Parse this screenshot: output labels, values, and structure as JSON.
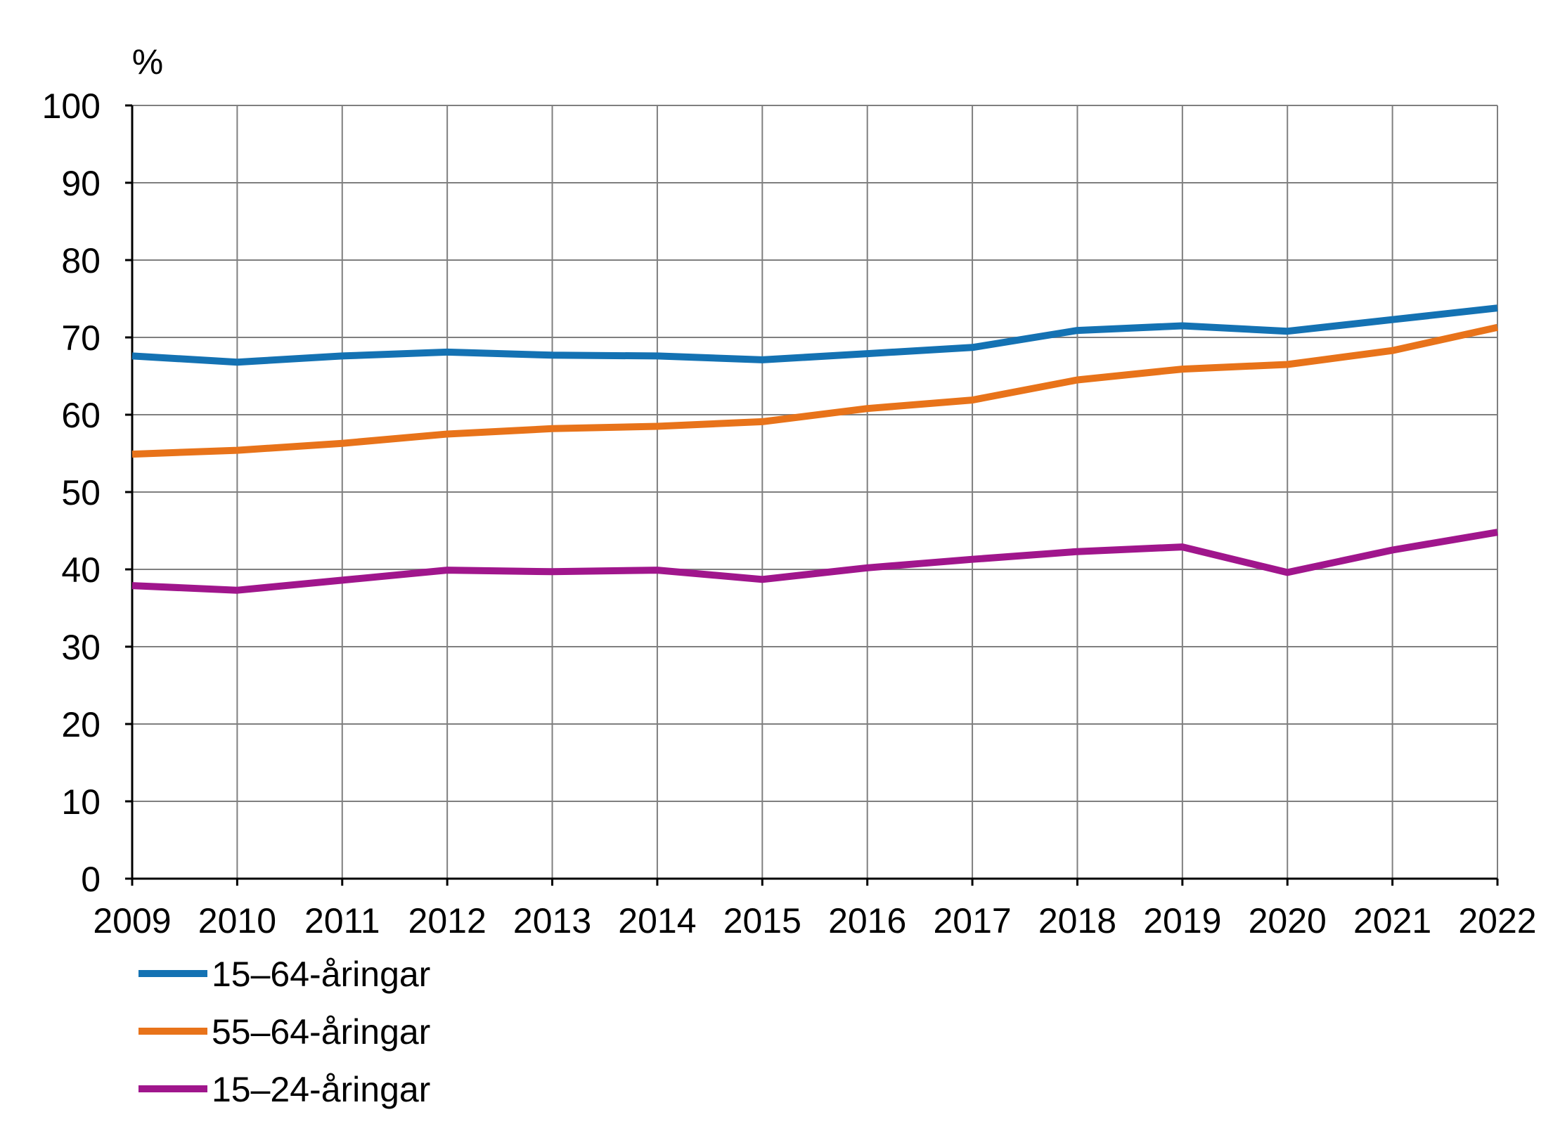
{
  "chart_data": {
    "type": "line",
    "title": "",
    "ylabel": "%",
    "xlabel": "",
    "ylim": [
      0,
      100
    ],
    "yticks": [
      0,
      10,
      20,
      30,
      40,
      50,
      60,
      70,
      80,
      90,
      100
    ],
    "grid": true,
    "legend_position": "bottom-left",
    "categories": [
      "2009",
      "2010",
      "2011",
      "2012",
      "2013",
      "2014",
      "2015",
      "2016",
      "2017",
      "2018",
      "2019",
      "2020",
      "2021",
      "2022"
    ],
    "series": [
      {
        "name": "15–64-åringar",
        "color": "#1472b3",
        "values": [
          67.6,
          66.8,
          67.6,
          68.1,
          67.7,
          67.6,
          67.1,
          67.9,
          68.7,
          70.9,
          71.5,
          70.8,
          72.3,
          73.8
        ]
      },
      {
        "name": "55–64-åringar",
        "color": "#e8731a",
        "values": [
          54.9,
          55.4,
          56.3,
          57.5,
          58.2,
          58.5,
          59.1,
          60.8,
          61.9,
          64.5,
          65.9,
          66.5,
          68.3,
          71.3
        ]
      },
      {
        "name": "15–24-åringar",
        "color": "#a0168c",
        "values": [
          37.9,
          37.3,
          38.6,
          39.9,
          39.7,
          39.9,
          38.7,
          40.2,
          41.3,
          42.3,
          42.9,
          39.6,
          42.5,
          44.8
        ]
      }
    ]
  }
}
